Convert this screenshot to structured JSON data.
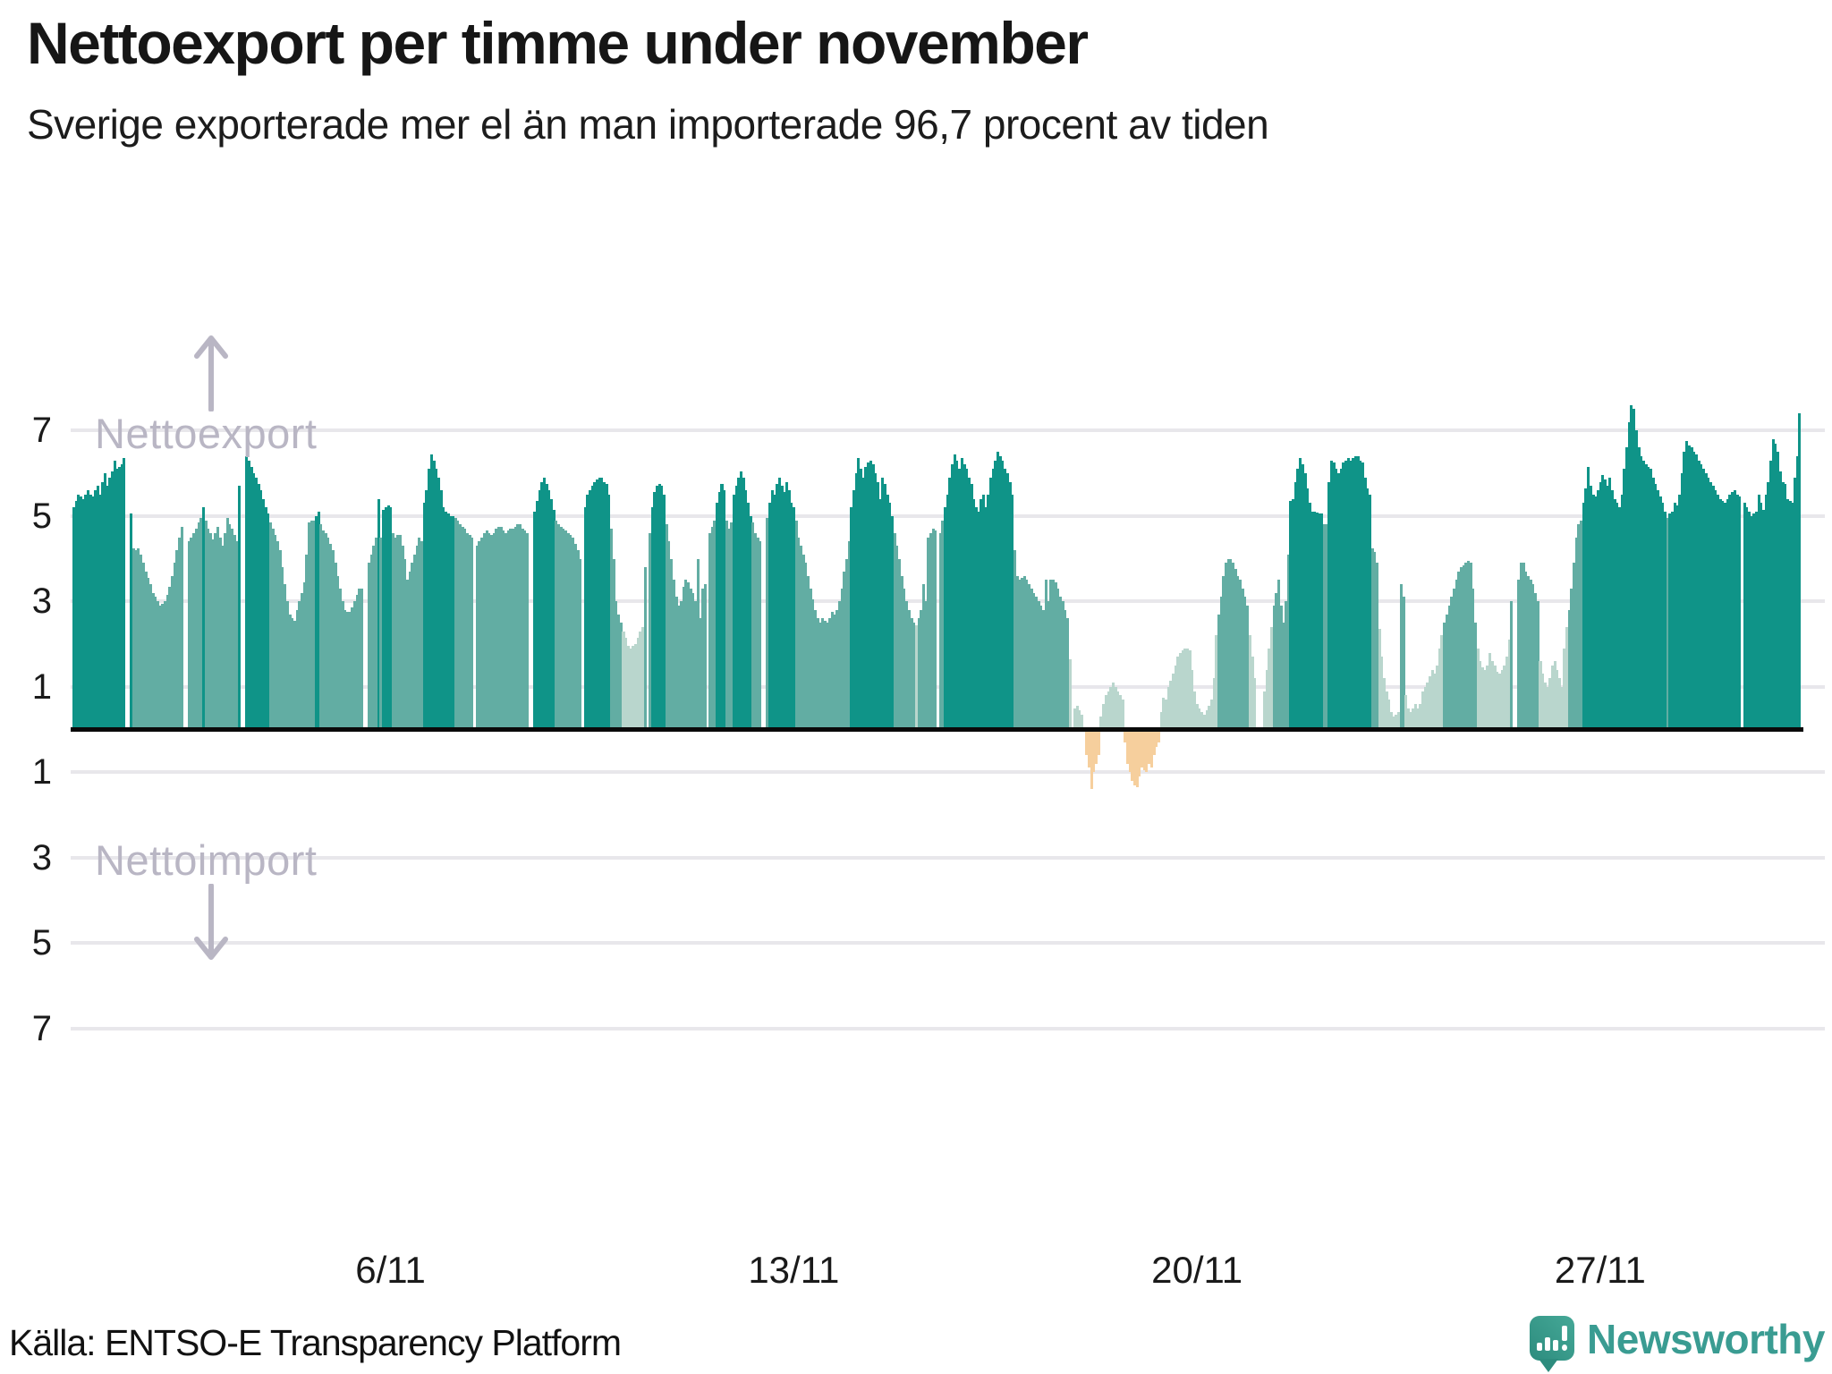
{
  "header": {
    "title": "Nettoexport per timme under november",
    "subtitle": "Sverige exporterade mer el än man importerade 96,7 procent av tiden"
  },
  "annotations": {
    "export_label": "Nettoexport",
    "import_label": "Nettoimport"
  },
  "axes": {
    "y_ticks": [
      {
        "label": "7",
        "value": 7
      },
      {
        "label": "5",
        "value": 5
      },
      {
        "label": "3",
        "value": 3
      },
      {
        "label": "1",
        "value": 1
      },
      {
        "label": "1",
        "value": -1
      },
      {
        "label": "3",
        "value": -3
      },
      {
        "label": "5",
        "value": -5
      },
      {
        "label": "7",
        "value": -7
      }
    ],
    "x_ticks": [
      {
        "label": "6/11",
        "hour": 132
      },
      {
        "label": "13/11",
        "hour": 300
      },
      {
        "label": "20/11",
        "hour": 468
      },
      {
        "label": "27/11",
        "hour": 636
      }
    ]
  },
  "colors": {
    "export_high": "#0f9488",
    "export_mid": "#62ada3",
    "export_low": "#b9d6cd",
    "import": "#f6cf9d",
    "grid": "#e8e7eb",
    "zero_line": "#0a0a0a",
    "annotation": "#b9b6c4",
    "brand_teal": "#3a9c92"
  },
  "footer": {
    "source": "Källa: ENTSO-E Transparency Platform",
    "brand": "Newsworthy"
  },
  "chart_data": {
    "type": "bar",
    "title": "Nettoexport per timme under november",
    "xlabel": "",
    "ylabel": "",
    "x_start": "1/11 00:00",
    "resolution_hours": 1,
    "ylim": [
      -7.7,
      7.7
    ],
    "grid": true,
    "color_thresholds": {
      "high_min": 5,
      "mid_min": 2.5,
      "import_below": 0
    },
    "share_net_export_of_time_pct": 96.7,
    "values": [
      5.2,
      5.35,
      5.5,
      5.45,
      5.4,
      5.5,
      5.6,
      5.5,
      5.45,
      5.6,
      5.7,
      5.5,
      5.8,
      6.0,
      5.7,
      5.9,
      6.05,
      6.3,
      6.1,
      6.15,
      6.2,
      6.35,
      0.05,
      0.05,
      5.05,
      4.25,
      4.2,
      4.25,
      4.1,
      3.9,
      3.7,
      3.55,
      3.4,
      3.2,
      3.1,
      3.0,
      2.9,
      2.95,
      3.0,
      3.15,
      3.35,
      3.6,
      3.9,
      4.2,
      4.5,
      4.75,
      0.05,
      0.05,
      4.4,
      4.5,
      4.6,
      4.7,
      4.85,
      4.95,
      5.2,
      4.9,
      4.7,
      4.6,
      4.45,
      4.6,
      4.75,
      4.5,
      4.3,
      4.6,
      4.95,
      4.8,
      4.7,
      4.55,
      4.4,
      5.7,
      0.05,
      0.05,
      6.4,
      6.3,
      6.15,
      6.0,
      5.9,
      5.75,
      5.6,
      5.4,
      5.2,
      5.05,
      4.85,
      4.7,
      4.55,
      4.4,
      4.2,
      3.8,
      3.4,
      3.0,
      2.7,
      2.6,
      2.55,
      2.8,
      3.0,
      3.2,
      3.45,
      4.1,
      4.85,
      4.9,
      4.9,
      5.0,
      5.1,
      4.8,
      4.65,
      4.6,
      4.5,
      4.35,
      4.2,
      3.9,
      3.6,
      3.3,
      3.0,
      2.8,
      2.75,
      2.75,
      2.85,
      3.0,
      3.15,
      3.3,
      3.3,
      0.05,
      0.05,
      3.9,
      4.1,
      4.3,
      4.5,
      5.4,
      4.5,
      5.15,
      5.2,
      5.25,
      5.2,
      4.6,
      4.5,
      4.55,
      4.55,
      4.3,
      4.0,
      3.5,
      3.7,
      3.9,
      4.1,
      4.3,
      4.5,
      4.4,
      5.3,
      5.6,
      6.1,
      6.45,
      6.3,
      6.1,
      5.9,
      5.6,
      5.2,
      5.1,
      5.05,
      5.0,
      5.0,
      4.95,
      4.9,
      4.8,
      4.75,
      4.7,
      4.6,
      4.55,
      4.5,
      0.05,
      4.3,
      4.4,
      4.5,
      4.6,
      4.65,
      4.6,
      4.55,
      4.6,
      4.7,
      4.75,
      4.75,
      4.65,
      4.6,
      4.65,
      4.7,
      4.7,
      4.75,
      4.8,
      4.8,
      4.7,
      4.65,
      4.6,
      0.05,
      0.05,
      5.1,
      5.35,
      5.6,
      5.8,
      5.9,
      5.75,
      5.6,
      5.4,
      5.15,
      4.9,
      4.8,
      4.75,
      4.7,
      4.65,
      4.6,
      4.55,
      4.5,
      4.35,
      4.2,
      4.0,
      0.05,
      5.2,
      5.5,
      5.6,
      5.7,
      5.8,
      5.85,
      5.9,
      5.9,
      5.8,
      5.75,
      5.5,
      4.7,
      4.0,
      3.0,
      2.7,
      2.5,
      2.3,
      2.15,
      1.95,
      1.9,
      1.95,
      2.0,
      2.15,
      2.3,
      2.4,
      3.8,
      0.05,
      4.6,
      5.2,
      5.55,
      5.7,
      5.75,
      5.7,
      5.5,
      4.8,
      4.4,
      4.0,
      3.5,
      3.1,
      2.9,
      3.0,
      3.35,
      3.5,
      3.45,
      3.3,
      3.2,
      3.0,
      4.0,
      2.6,
      3.3,
      3.4,
      0.05,
      4.6,
      4.75,
      4.9,
      5.3,
      5.55,
      5.75,
      5.6,
      4.9,
      4.7,
      4.85,
      5.5,
      5.7,
      5.9,
      6.05,
      5.9,
      5.6,
      5.3,
      5.0,
      4.85,
      4.6,
      4.5,
      4.4,
      0.05,
      0.05,
      4.95,
      5.3,
      5.6,
      5.5,
      5.75,
      5.9,
      5.7,
      5.55,
      5.8,
      5.6,
      5.3,
      5.2,
      4.9,
      4.5,
      4.3,
      4.1,
      3.9,
      3.6,
      3.3,
      3.05,
      2.8,
      2.6,
      2.5,
      2.6,
      2.55,
      2.5,
      2.6,
      2.75,
      2.7,
      2.8,
      3.0,
      3.3,
      3.7,
      4.0,
      4.4,
      5.2,
      5.6,
      6.0,
      6.35,
      6.1,
      5.9,
      6.15,
      6.25,
      6.3,
      6.2,
      6.0,
      5.8,
      5.4,
      5.9,
      5.75,
      5.5,
      5.3,
      5.0,
      4.6,
      4.3,
      4.0,
      3.6,
      3.3,
      3.0,
      2.8,
      2.6,
      2.5,
      2.45,
      2.6,
      2.8,
      3.4,
      3.0,
      4.5,
      4.6,
      4.7,
      4.65,
      0.05,
      4.6,
      4.9,
      5.2,
      5.5,
      5.9,
      6.2,
      6.45,
      6.3,
      6.1,
      6.35,
      6.2,
      6.1,
      5.9,
      5.75,
      5.4,
      5.2,
      5.1,
      5.4,
      5.5,
      5.2,
      5.5,
      5.9,
      6.1,
      6.3,
      6.5,
      6.4,
      6.3,
      6.1,
      6.0,
      5.8,
      5.5,
      4.2,
      3.6,
      3.5,
      3.55,
      3.6,
      3.5,
      3.4,
      3.3,
      3.2,
      3.1,
      3.0,
      2.9,
      2.8,
      3.5,
      3.0,
      3.5,
      3.5,
      3.45,
      3.3,
      3.1,
      3.0,
      2.8,
      2.6,
      1.65,
      0.05,
      0.5,
      0.55,
      0.45,
      0.35,
      0.05,
      -0.6,
      -0.9,
      -1.4,
      -1.0,
      -0.8,
      -0.6,
      0.3,
      0.6,
      0.8,
      0.9,
      1.0,
      1.1,
      1.0,
      0.9,
      0.8,
      0.7,
      -0.3,
      -0.8,
      -1.0,
      -1.2,
      -1.3,
      -1.35,
      -1.1,
      -0.9,
      -0.95,
      -1.0,
      -0.8,
      -0.9,
      -0.6,
      -0.4,
      -0.3,
      0.4,
      0.75,
      0.7,
      1.0,
      1.15,
      1.3,
      1.5,
      1.7,
      1.8,
      1.85,
      1.9,
      1.9,
      1.85,
      1.4,
      0.9,
      0.6,
      0.5,
      0.4,
      0.35,
      0.45,
      0.55,
      0.7,
      1.2,
      2.2,
      2.7,
      3.1,
      3.6,
      3.9,
      4.0,
      4.0,
      3.9,
      3.75,
      3.6,
      3.5,
      3.3,
      3.1,
      2.9,
      2.2,
      1.7,
      1.2,
      0.05,
      0.05,
      0.05,
      0.9,
      1.4,
      1.9,
      2.4,
      2.9,
      3.2,
      3.5,
      2.9,
      2.5,
      3.0,
      4.1,
      5.35,
      5.4,
      5.8,
      6.1,
      6.35,
      6.2,
      6.0,
      5.65,
      5.3,
      5.1,
      5.1,
      5.07,
      5.06,
      5.05,
      4.8,
      4.8,
      5.8,
      6.3,
      6.25,
      6.1,
      6.0,
      6.1,
      6.25,
      6.3,
      6.35,
      6.3,
      6.35,
      6.4,
      6.4,
      6.3,
      6.25,
      5.9,
      5.65,
      5.5,
      4.25,
      4.15,
      3.9,
      2.35,
      1.7,
      1.2,
      0.9,
      0.7,
      0.4,
      0.3,
      0.35,
      0.4,
      3.4,
      3.1,
      0.8,
      0.5,
      0.4,
      0.5,
      0.6,
      0.5,
      0.6,
      0.9,
      1.0,
      1.1,
      1.25,
      1.4,
      1.3,
      1.5,
      1.9,
      2.2,
      2.5,
      2.7,
      2.9,
      3.1,
      3.3,
      3.5,
      3.7,
      3.8,
      3.85,
      3.9,
      3.95,
      3.9,
      3.3,
      2.5,
      1.9,
      1.6,
      1.45,
      1.4,
      1.5,
      1.8,
      1.6,
      1.5,
      1.35,
      1.3,
      1.4,
      1.5,
      1.7,
      2.1,
      3.0,
      0.05,
      0.05,
      3.5,
      3.9,
      3.9,
      3.7,
      3.6,
      3.5,
      3.4,
      3.2,
      3.0,
      1.6,
      1.3,
      1.1,
      1.0,
      1.2,
      1.5,
      1.6,
      1.4,
      1.2,
      1.0,
      1.9,
      2.4,
      2.8,
      3.3,
      3.9,
      4.5,
      4.8,
      4.9,
      5.3,
      5.65,
      6.15,
      5.7,
      5.5,
      5.45,
      5.6,
      5.8,
      5.95,
      5.85,
      5.7,
      5.9,
      5.6,
      5.4,
      5.3,
      5.2,
      5.5,
      6.1,
      6.6,
      7.2,
      7.6,
      7.5,
      7.0,
      6.6,
      6.4,
      6.3,
      6.2,
      6.15,
      6.1,
      5.9,
      5.75,
      5.6,
      5.45,
      5.3,
      5.1,
      4.95,
      5.05,
      5.1,
      5.3,
      5.25,
      5.5,
      6.0,
      6.5,
      6.75,
      6.65,
      6.6,
      6.5,
      6.45,
      6.3,
      6.2,
      6.1,
      6.0,
      5.9,
      5.8,
      5.7,
      5.6,
      5.5,
      5.4,
      5.35,
      5.3,
      5.4,
      5.5,
      5.55,
      5.6,
      5.5,
      5.45,
      0.05,
      5.3,
      5.2,
      5.1,
      5.0,
      5.05,
      5.1,
      5.5,
      5.3,
      5.15,
      5.5,
      5.8,
      6.3,
      6.8,
      6.7,
      6.5,
      6.05,
      5.8,
      5.75,
      5.4,
      5.35,
      5.3,
      5.9,
      6.4,
      7.4
    ]
  }
}
